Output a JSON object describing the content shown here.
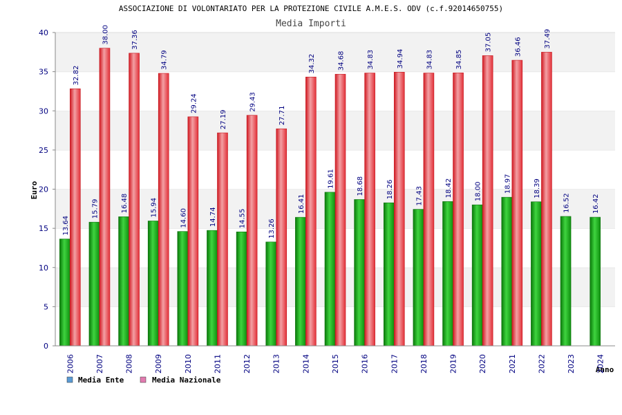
{
  "chart_data": {
    "type": "bar",
    "title": "ASSOCIAZIONE DI VOLONTARIATO PER LA PROTEZIONE CIVILE A.M.E.S. ODV (c.f.92014650755)",
    "subtitle": "Media Importi",
    "xlabel": "Anno",
    "ylabel": "Euro",
    "ylim": [
      0,
      40
    ],
    "yticks": [
      0,
      5,
      10,
      15,
      20,
      25,
      30,
      35,
      40
    ],
    "grid": true,
    "legend_position": "bottom-left",
    "categories": [
      "2006",
      "2007",
      "2008",
      "2009",
      "2010",
      "2011",
      "2012",
      "2013",
      "2014",
      "2015",
      "2016",
      "2017",
      "2018",
      "2019",
      "2020",
      "2021",
      "2022",
      "2023",
      "2024"
    ],
    "series": [
      {
        "name": "Media Ente",
        "color": "#1aa31a",
        "legend_color": "#5b9bd5",
        "values": [
          13.64,
          15.79,
          16.48,
          15.94,
          14.6,
          14.74,
          14.55,
          13.26,
          16.41,
          19.61,
          18.68,
          18.26,
          17.43,
          18.42,
          18.0,
          18.97,
          18.39,
          16.52,
          16.42
        ],
        "labels": [
          "13.64",
          "15.79",
          "16.48",
          "15.94",
          "14.60",
          "14.74",
          "14.55",
          "13.26",
          "16.41",
          "19.61",
          "18.68",
          "18.26",
          "17.43",
          "18.42",
          "18.00",
          "18.97",
          "18.39",
          "16.52",
          "16.42"
        ]
      },
      {
        "name": "Media Nazionale",
        "color": "#e8303a",
        "legend_color": "#e27bb0",
        "values": [
          32.82,
          38.0,
          37.36,
          34.79,
          29.24,
          27.19,
          29.43,
          27.71,
          34.32,
          34.68,
          34.83,
          34.94,
          34.83,
          34.85,
          37.05,
          36.46,
          37.49,
          null,
          null
        ],
        "labels": [
          "32.82",
          "38.00",
          "37.36",
          "34.79",
          "29.24",
          "27.19",
          "29.43",
          "27.71",
          "34.32",
          "34.68",
          "34.83",
          "34.94",
          "34.83",
          "34.85",
          "37.05",
          "36.46",
          "37.49",
          null,
          null
        ]
      }
    ]
  }
}
